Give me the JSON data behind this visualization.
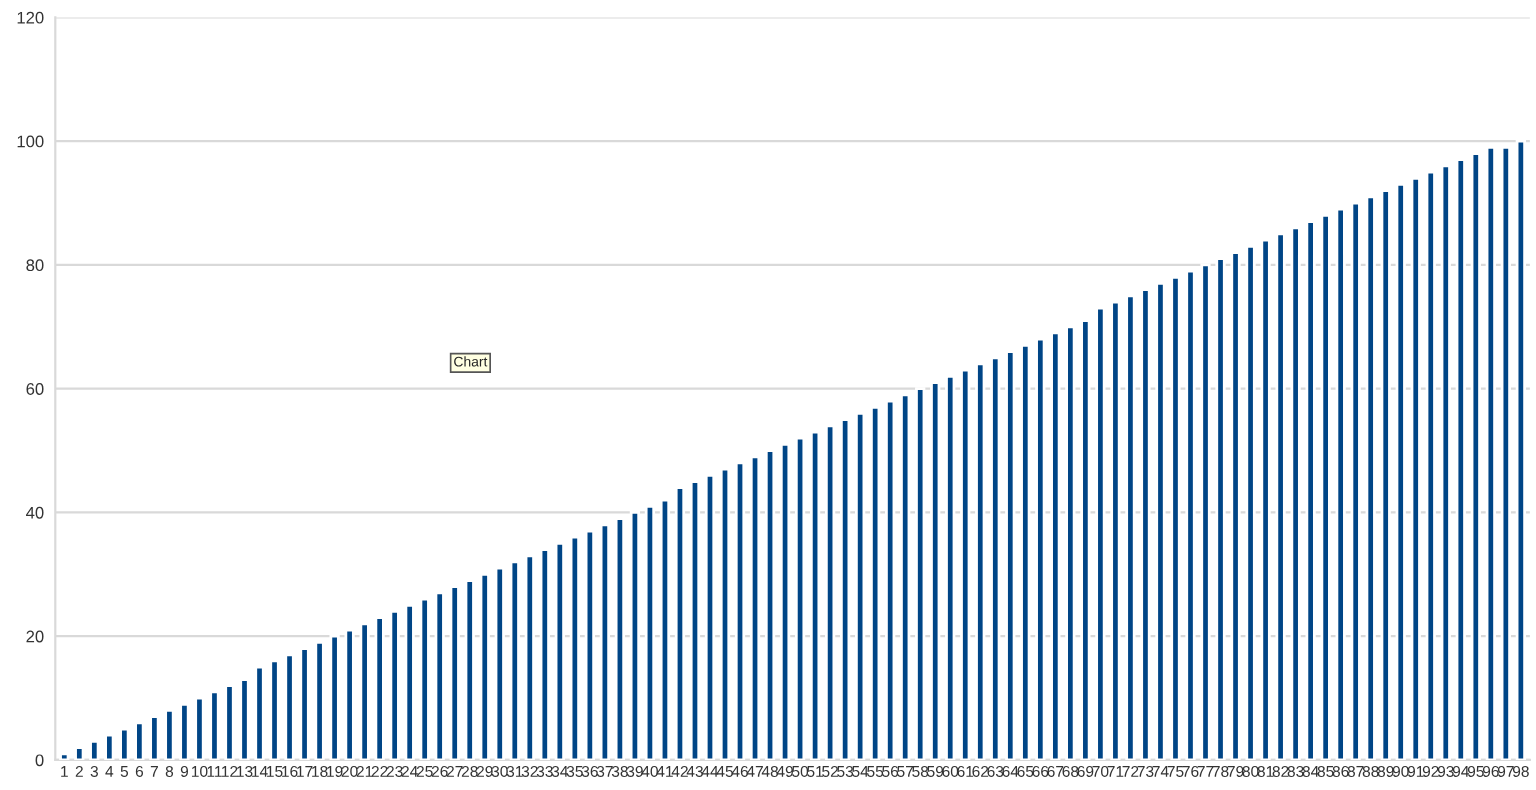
{
  "chart_data": {
    "type": "bar",
    "categories": [
      "1",
      "2",
      "3",
      "4",
      "5",
      "6",
      "7",
      "8",
      "9",
      "10",
      "11",
      "12",
      "13",
      "14",
      "15",
      "16",
      "17",
      "18",
      "19",
      "20",
      "21",
      "22",
      "23",
      "24",
      "25",
      "26",
      "27",
      "28",
      "29",
      "30",
      "31",
      "32",
      "33",
      "34",
      "35",
      "36",
      "37",
      "38",
      "39",
      "40",
      "41",
      "42",
      "43",
      "44",
      "45",
      "46",
      "47",
      "48",
      "49",
      "50",
      "51",
      "52",
      "53",
      "54",
      "55",
      "56",
      "57",
      "58",
      "59",
      "60",
      "61",
      "62",
      "63",
      "64",
      "65",
      "66",
      "67",
      "68",
      "69",
      "70",
      "71",
      "72",
      "73",
      "74",
      "75",
      "76",
      "77",
      "78",
      "79",
      "80",
      "81",
      "82",
      "83",
      "84",
      "85",
      "86",
      "87",
      "88",
      "89",
      "90",
      "91",
      "92",
      "93",
      "94",
      "95",
      "96",
      "97",
      "98"
    ],
    "values": [
      1,
      2,
      3,
      4,
      5,
      6,
      7,
      8,
      9,
      10,
      11,
      12,
      13,
      15,
      16,
      17,
      18,
      19,
      20,
      21,
      22,
      23,
      24,
      25,
      26,
      27,
      28,
      29,
      30,
      31,
      32,
      33,
      34,
      35,
      36,
      37,
      38,
      39,
      40,
      41,
      42,
      44,
      45,
      46,
      47,
      48,
      49,
      50,
      51,
      52,
      53,
      54,
      55,
      56,
      57,
      58,
      59,
      60,
      61,
      62,
      63,
      64,
      65,
      66,
      67,
      68,
      69,
      70,
      71,
      73,
      74,
      75,
      76,
      77,
      78,
      79,
      80,
      81,
      82,
      83,
      84,
      85,
      86,
      87,
      88,
      89,
      90,
      91,
      92,
      93,
      94,
      95,
      96,
      97,
      98,
      99,
      99,
      100
    ],
    "color": "#004586",
    "ylim": [
      0,
      120
    ],
    "yticks": [
      0,
      20,
      40,
      60,
      80,
      100,
      120
    ],
    "grid": "y",
    "annotations": [
      "Chart"
    ]
  }
}
